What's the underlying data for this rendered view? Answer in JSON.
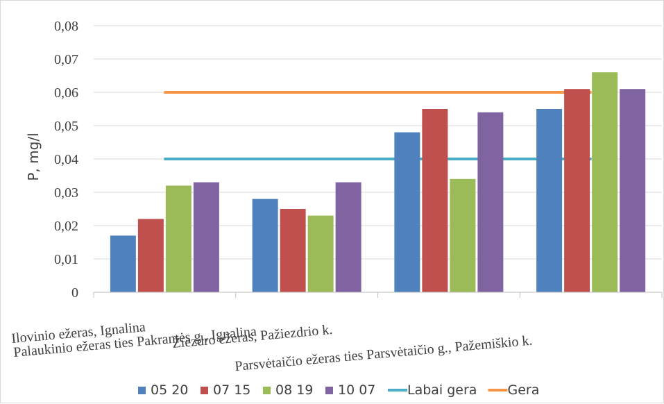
{
  "chart_data": {
    "type": "bar",
    "categories": [
      "Ilovinio ežeras, Ignalina",
      "Palaukinio ežeras ties Pakrantės g., Ignalina",
      "Žiezdro ežeras, Pažiezdrio k.",
      "Parsvėtaičio ežeras ties Parsvėtaičio g., Pažemiškio k."
    ],
    "series": [
      {
        "name": "05 20",
        "color": "#4f81bd",
        "values": [
          0.017,
          0.028,
          0.048,
          0.055
        ]
      },
      {
        "name": "07 15",
        "color": "#c0504d",
        "values": [
          0.022,
          0.025,
          0.055,
          0.061
        ]
      },
      {
        "name": "08 19",
        "color": "#9bbb59",
        "values": [
          0.032,
          0.023,
          0.034,
          0.066
        ]
      },
      {
        "name": "10 07",
        "color": "#8064a2",
        "values": [
          0.033,
          0.033,
          0.054,
          0.061
        ]
      }
    ],
    "reference_lines": [
      {
        "name": "Labai gera",
        "color": "#4bacc6",
        "value": 0.04
      },
      {
        "name": "Gera",
        "color": "#f79646",
        "value": 0.06
      }
    ],
    "ylabel": "P, mg/l",
    "xlabel": "",
    "ylim": [
      0,
      0.08
    ],
    "yticks": [
      "0",
      "0,01",
      "0,02",
      "0,03",
      "0,04",
      "0,05",
      "0,06",
      "0,07",
      "0,08"
    ],
    "grid": true,
    "legend_position": "bottom"
  }
}
